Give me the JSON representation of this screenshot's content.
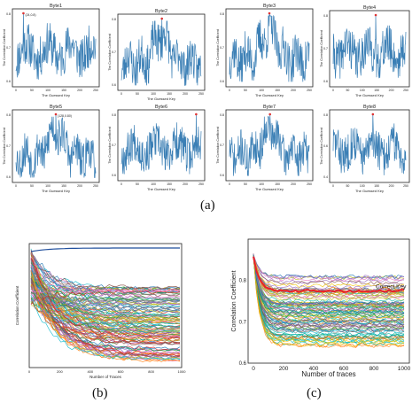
{
  "figure": {
    "caption_a": "(a)",
    "caption_b": "(b)",
    "caption_c": "(c)"
  },
  "chart_data": [
    {
      "type": "line",
      "panel": "a1",
      "title": "Byte1",
      "xlabel": "The Guessed Key",
      "ylabel": "The Correlation Coefficient",
      "xlim": [
        0,
        256
      ],
      "ylim": [
        0.6,
        0.8
      ],
      "xticks": [
        "0",
        "50",
        "100",
        "150",
        "200",
        "250"
      ],
      "yticks": [
        "0.8",
        "0.7",
        "0.6"
      ],
      "peak_label": "(24,0.8)",
      "peak_x": 24,
      "peak_y": 0.8,
      "shape": "flat",
      "seed": 11
    },
    {
      "type": "line",
      "panel": "a2",
      "title": "Byte2",
      "xlabel": "The Guessed Key",
      "ylabel": "The Correlation Coefficient",
      "xlim": [
        0,
        256
      ],
      "ylim": [
        0.6,
        0.8
      ],
      "xticks": [
        "0",
        "50",
        "100",
        "150",
        "200",
        "250"
      ],
      "yticks": [
        "0.8",
        "0.7",
        "0.6"
      ],
      "peak_label": "",
      "peak_x": 130,
      "peak_y": 0.79,
      "shape": "center",
      "seed": 23
    },
    {
      "type": "line",
      "panel": "a3",
      "title": "Byte3",
      "xlabel": "The Guessed Key",
      "ylabel": "The Correlation Coefficient",
      "xlim": [
        0,
        256
      ],
      "ylim": [
        0.6,
        0.8
      ],
      "xticks": [
        "0",
        "50",
        "100",
        "150",
        "200",
        "250"
      ],
      "yticks": [
        "0.8",
        "0.7",
        "0.6"
      ],
      "peak_label": "",
      "peak_x": 128,
      "peak_y": 0.8,
      "shape": "center",
      "seed": 37
    },
    {
      "type": "line",
      "panel": "a4",
      "title": "Byte4",
      "xlabel": "The Guessed Key",
      "ylabel": "The Correlation Coefficient",
      "xlim": [
        0,
        256
      ],
      "ylim": [
        0.6,
        0.8
      ],
      "xticks": [
        "0",
        "50",
        "100",
        "150",
        "200",
        "250"
      ],
      "yticks": [
        "0.8",
        "0.7",
        "0.6"
      ],
      "peak_label": "",
      "peak_x": 150,
      "peak_y": 0.79,
      "shape": "flat",
      "seed": 41
    },
    {
      "type": "line",
      "panel": "a5",
      "title": "Byte5",
      "xlabel": "The Guessed Key",
      "ylabel": "The Correlation Coefficient",
      "xlim": [
        0,
        256
      ],
      "ylim": [
        0.6,
        0.8
      ],
      "xticks": [
        "0",
        "50",
        "100",
        "150",
        "200",
        "250"
      ],
      "yticks": [
        "0.8",
        "0.7",
        "0.6"
      ],
      "peak_label": "(128,0.80)",
      "peak_x": 128,
      "peak_y": 0.8,
      "shape": "center",
      "seed": 53
    },
    {
      "type": "line",
      "panel": "a6",
      "title": "Byte6",
      "xlabel": "The Guessed Key",
      "ylabel": "The Correlation Coefficient",
      "xlim": [
        0,
        256
      ],
      "ylim": [
        0.6,
        0.8
      ],
      "xticks": [
        "0",
        "50",
        "100",
        "150",
        "200",
        "250"
      ],
      "yticks": [
        "0.8",
        "0.7",
        "0.6"
      ],
      "peak_label": "",
      "peak_x": 240,
      "peak_y": 0.79,
      "shape": "flat",
      "seed": 67
    },
    {
      "type": "line",
      "panel": "a7",
      "title": "Byte7",
      "xlabel": "The Guessed Key",
      "ylabel": "The Correlation Coefficient",
      "xlim": [
        0,
        256
      ],
      "ylim": [
        0.6,
        0.8
      ],
      "xticks": [
        "0",
        "50",
        "100",
        "150",
        "200",
        "250"
      ],
      "yticks": [
        "0.8",
        "0.7",
        "0.6"
      ],
      "peak_label": "",
      "peak_x": 130,
      "peak_y": 0.79,
      "shape": "center",
      "seed": 71
    },
    {
      "type": "line",
      "panel": "a8",
      "title": "Byte8",
      "xlabel": "The Guessed Key",
      "ylabel": "The Correlation Coefficient",
      "xlim": [
        0,
        256
      ],
      "ylim": [
        0.6,
        0.8
      ],
      "xticks": [
        "0",
        "50",
        "100",
        "150",
        "200",
        "250"
      ],
      "yticks": [
        "0.8",
        "0.6",
        "0.4"
      ],
      "peak_label": "",
      "peak_x": 140,
      "peak_y": 0.8,
      "shape": "flat",
      "seed": 83
    },
    {
      "type": "line",
      "panel": "b",
      "title": "",
      "xlabel": "Number of Traces",
      "ylabel": "Correlation Coefficient",
      "xlim": [
        0,
        1000
      ],
      "ylim": [
        0.2,
        1.0
      ],
      "xticks": [
        "0",
        "200",
        "400",
        "600",
        "800",
        "1000"
      ],
      "series_count": 120,
      "highlight_color": "#1f4e9c",
      "seed": 5
    },
    {
      "type": "line",
      "panel": "c",
      "title": "",
      "xlabel": "Number of traces",
      "ylabel": "Correlation Coefficient",
      "xlim": [
        0,
        1000
      ],
      "ylim": [
        0.6,
        0.9
      ],
      "xticks": [
        "0",
        "200",
        "400",
        "600",
        "800",
        "1000"
      ],
      "yticks": [
        "0.6",
        "0.7",
        "0.8"
      ],
      "annotation": "Correct Key",
      "series_count": 100,
      "highlight_color": "#e8202a",
      "seed": 9
    }
  ]
}
